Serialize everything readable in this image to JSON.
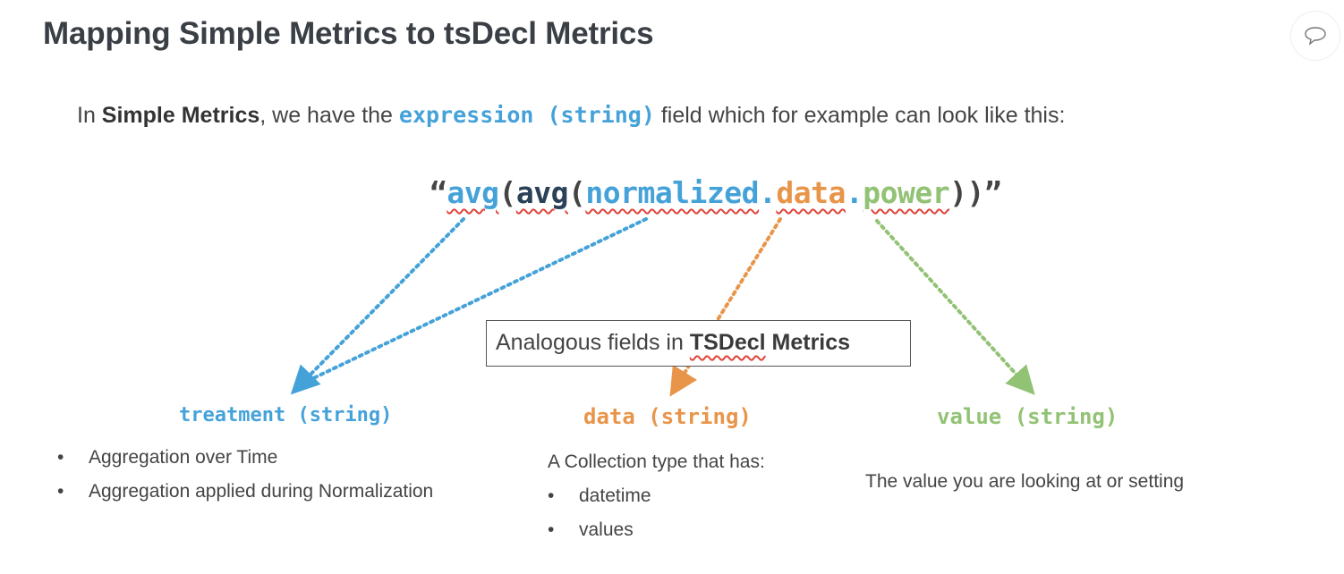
{
  "title": "Mapping Simple Metrics to tsDecl Metrics",
  "comment_icon": "speech-bubble-icon",
  "intro": {
    "prefix": "In ",
    "bold": "Simple Metrics",
    "middle": ", we have the ",
    "code": "expression (string)",
    "suffix": " field which for example can look like this:"
  },
  "expression": {
    "open_quote": "“",
    "part1": "avg",
    "paren1": "(",
    "part2": "avg",
    "paren2": "(",
    "part3": "normalized",
    "dot1": ".",
    "part4": "data",
    "dot2": ".",
    "part5": "power",
    "close": "))",
    "close_quote": "”"
  },
  "box": {
    "prefix": "Analogous fields in ",
    "bold1": "TSDecl",
    "bold2": " Metrics"
  },
  "fields": {
    "treatment": {
      "label": "treatment (string)",
      "items": [
        "Aggregation over Time",
        "Aggregation applied during Normalization"
      ]
    },
    "data": {
      "label": "data (string)",
      "intro": "A Collection type that has:",
      "items": [
        "datetime",
        "values"
      ]
    },
    "value": {
      "label": "value (string)",
      "description": "The value you are looking at or setting"
    }
  },
  "colors": {
    "blue": "#45a2d9",
    "navy": "#2a4158",
    "orange": "#e8954a",
    "green": "#92c274"
  }
}
